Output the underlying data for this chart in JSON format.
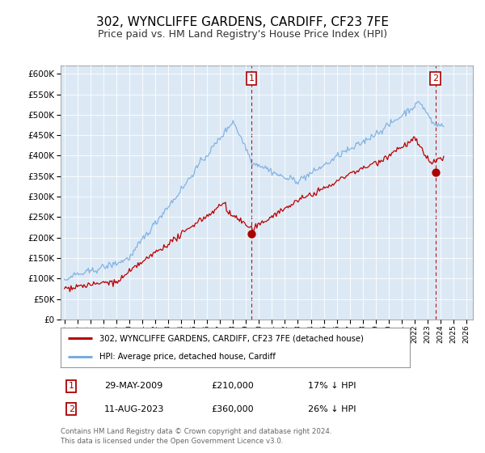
{
  "title": "302, WYNCLIFFE GARDENS, CARDIFF, CF23 7FE",
  "subtitle": "Price paid vs. HM Land Registry's House Price Index (HPI)",
  "ylim": [
    0,
    620000
  ],
  "yticks": [
    0,
    50000,
    100000,
    150000,
    200000,
    250000,
    300000,
    350000,
    400000,
    450000,
    500000,
    550000,
    600000
  ],
  "xlim_start": 1994.7,
  "xlim_end": 2026.5,
  "background_color": "#ffffff",
  "plot_bg_color": "#dce9f5",
  "grid_color": "#cccccc",
  "title_fontsize": 11,
  "subtitle_fontsize": 9,
  "red_line_color": "#bb0000",
  "blue_line_color": "#7aade0",
  "marker_color": "#aa0000",
  "transaction1": {
    "year_float": 2009.41,
    "price": 210000,
    "label": "1"
  },
  "transaction2": {
    "year_float": 2023.62,
    "price": 360000,
    "label": "2"
  },
  "legend_line1": "302, WYNCLIFFE GARDENS, CARDIFF, CF23 7FE (detached house)",
  "legend_line2": "HPI: Average price, detached house, Cardiff",
  "note1_label": "1",
  "note1_date": "29-MAY-2009",
  "note1_price": "£210,000",
  "note1_pct": "17% ↓ HPI",
  "note2_label": "2",
  "note2_date": "11-AUG-2023",
  "note2_price": "£360,000",
  "note2_pct": "26% ↓ HPI",
  "footer": "Contains HM Land Registry data © Crown copyright and database right 2024.\nThis data is licensed under the Open Government Licence v3.0."
}
